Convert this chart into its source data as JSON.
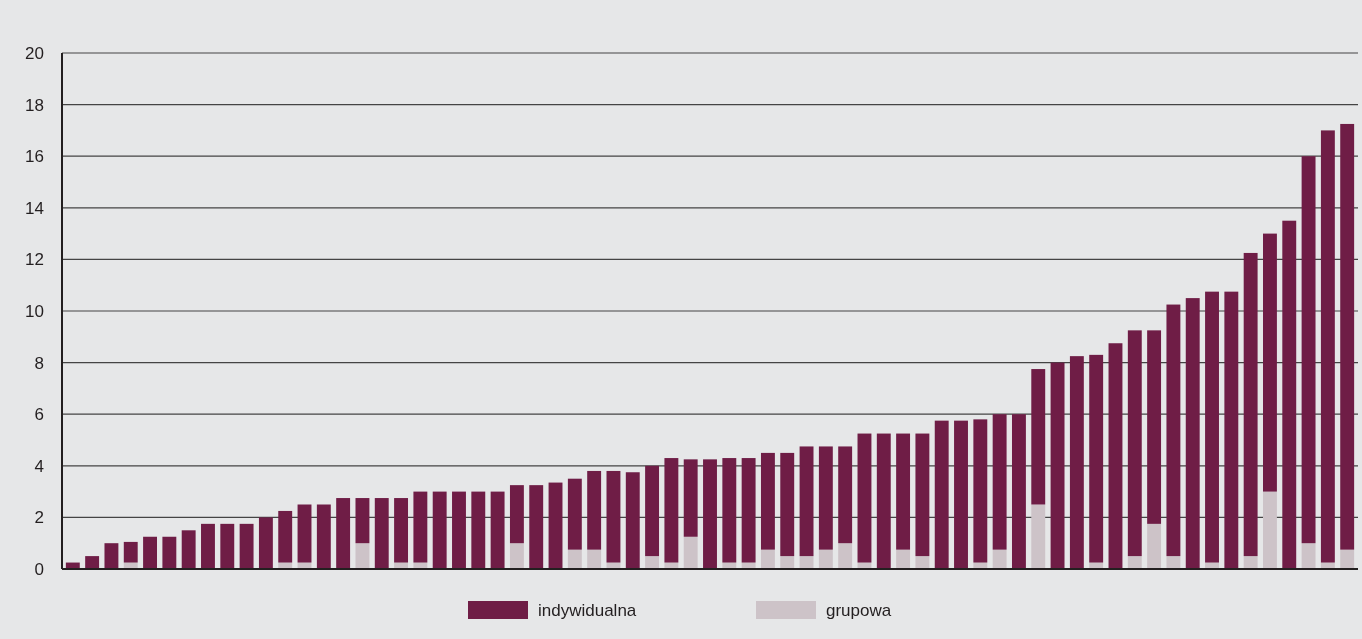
{
  "chart_data": {
    "type": "bar",
    "stacked": true,
    "categories": [
      null,
      null,
      null,
      null,
      null,
      null,
      null,
      null,
      null,
      null,
      null,
      null,
      null,
      null,
      null,
      null,
      null,
      null,
      null,
      null,
      null,
      null,
      null,
      null,
      null,
      null,
      null,
      null,
      null,
      null,
      null,
      null,
      null,
      null,
      null,
      null,
      null,
      null,
      null,
      null,
      null,
      null,
      null,
      null,
      null,
      null,
      null,
      null,
      null,
      null,
      null,
      null,
      null,
      null,
      null,
      null,
      null,
      null,
      null,
      null,
      null,
      null,
      null,
      null,
      null,
      null,
      null
    ],
    "series": [
      {
        "name": "grupowa",
        "color": "#cdc3c8",
        "values": [
          0,
          0,
          0,
          0.25,
          0,
          0,
          0,
          0,
          0,
          0,
          0,
          0.25,
          0.25,
          0,
          0,
          1,
          0,
          0.25,
          0.25,
          0,
          0,
          0,
          0,
          1,
          0,
          0,
          0.75,
          0.75,
          0.25,
          0,
          0.5,
          0.25,
          1.25,
          0,
          0.25,
          0.25,
          0.75,
          0.5,
          0.5,
          0.75,
          1,
          0.25,
          0,
          0.75,
          0.5,
          0,
          0,
          0.25,
          0.75,
          0,
          2.5,
          0,
          0,
          0.25,
          0,
          0.5,
          1.75,
          0.5,
          0,
          0.25,
          0,
          0.5,
          3,
          0,
          1,
          0.25,
          0.75
        ]
      },
      {
        "name": "indywidualna",
        "color": "#6f1d46",
        "values": [
          0.25,
          0.5,
          1,
          0.8,
          1.25,
          1.25,
          1.5,
          1.75,
          1.75,
          1.75,
          2,
          2,
          2.25,
          2.5,
          2.75,
          1.75,
          2.75,
          2.5,
          2.75,
          3,
          3,
          3,
          3,
          2.25,
          3.25,
          3.35,
          2.75,
          3.05,
          3.55,
          3.75,
          3.5,
          4.05,
          3,
          4.25,
          4.05,
          4.05,
          3.75,
          4,
          4.25,
          4,
          3.75,
          5,
          5.25,
          4.5,
          4.75,
          5.75,
          5.75,
          5.55,
          5.25,
          6,
          5.25,
          8,
          8.25,
          8.05,
          8.75,
          8.75,
          7.5,
          9.75,
          10.5,
          10.5,
          10.75,
          11.75,
          10,
          13.5,
          15,
          16.75,
          16.5
        ]
      }
    ],
    "ylim": [
      0,
      20
    ],
    "yticks": [
      0,
      2,
      4,
      6,
      8,
      10,
      12,
      14,
      16,
      18,
      20
    ],
    "grid": "y",
    "legend": "bottom",
    "tick_labels": "y"
  }
}
